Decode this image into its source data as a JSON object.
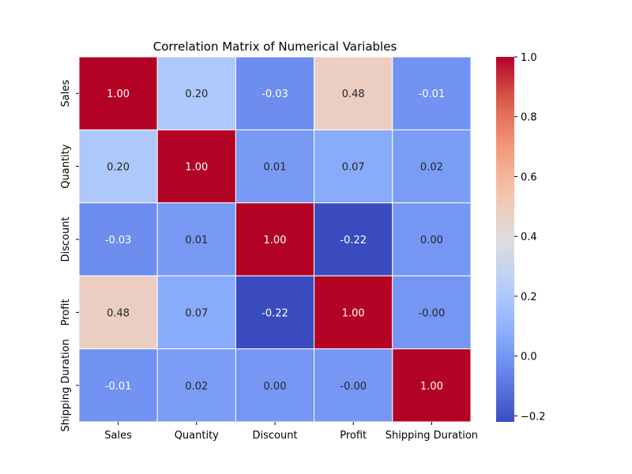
{
  "chart_data": {
    "type": "heatmap",
    "title": "Correlation Matrix of Numerical Variables",
    "xlabel": "",
    "ylabel": "",
    "x_categories": [
      "Sales",
      "Quantity",
      "Discount",
      "Profit",
      "Shipping Duration"
    ],
    "y_categories": [
      "Sales",
      "Quantity",
      "Discount",
      "Profit",
      "Shipping Duration"
    ],
    "values": [
      [
        1.0,
        0.2,
        -0.03,
        0.48,
        -0.01
      ],
      [
        0.2,
        1.0,
        0.01,
        0.07,
        0.02
      ],
      [
        -0.03,
        0.01,
        1.0,
        -0.22,
        0.0
      ],
      [
        0.48,
        0.07,
        -0.22,
        1.0,
        -0.0
      ],
      [
        -0.01,
        0.02,
        0.0,
        -0.0,
        1.0
      ]
    ],
    "cell_labels": [
      [
        "1.00",
        "0.20",
        "-0.03",
        "0.48",
        "-0.01"
      ],
      [
        "0.20",
        "1.00",
        "0.01",
        "0.07",
        "0.02"
      ],
      [
        "-0.03",
        "0.01",
        "1.00",
        "-0.22",
        "0.00"
      ],
      [
        "0.48",
        "0.07",
        "-0.22",
        "1.00",
        "-0.00"
      ],
      [
        "-0.01",
        "0.02",
        "0.00",
        "-0.00",
        "1.00"
      ]
    ],
    "colormap": "coolwarm",
    "colorbar": {
      "range": [
        -0.22,
        1.0
      ],
      "ticks": [
        -0.2,
        0.0,
        0.2,
        0.4,
        0.6,
        0.8,
        1.0
      ],
      "tick_labels": [
        "−0.2",
        "0.0",
        "0.2",
        "0.4",
        "0.6",
        "0.8",
        "1.0"
      ]
    },
    "grid": false,
    "cell_borders": "white"
  }
}
